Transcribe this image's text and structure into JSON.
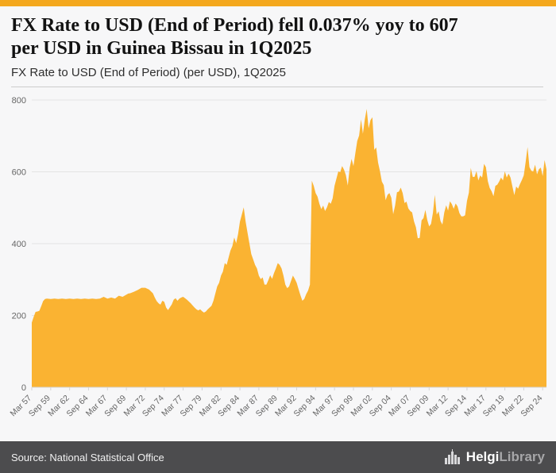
{
  "header": {
    "title_line1": "FX Rate to USD (End of Period) fell 0.037% yoy to 607",
    "title_line2": "per USD in Guinea Bissau in 1Q2025",
    "subtitle": "FX Rate to USD (End of Period) (per USD), 1Q2025"
  },
  "footer": {
    "source": "Source: National Statistical Office",
    "brand_primary": "Helgi",
    "brand_secondary": "Library"
  },
  "colors": {
    "accent_area_fill": "#FAB332",
    "accent_top_bar": "#F4A81D",
    "footer_bg": "#4C4C4E",
    "grid_line": "#e3e3e3",
    "axis_line": "#d6d6d6",
    "tick_text": "#666666"
  },
  "chart_data": {
    "type": "area",
    "title": "FX Rate to USD (End of Period) (per USD), 1Q2025",
    "xlabel": "",
    "ylabel": "",
    "ylim": [
      0,
      800
    ],
    "yticks": [
      0,
      200,
      400,
      600,
      800
    ],
    "xlim": [
      1957.0,
      2025.0
    ],
    "grid": true,
    "legend": "none",
    "latest_value": 607,
    "latest_period": "1Q2025",
    "yoy_change_pct": -0.037,
    "xticks": [
      {
        "x": 1957.0,
        "label": "Mar 57"
      },
      {
        "x": 1959.5,
        "label": "Sep 59"
      },
      {
        "x": 1962.0,
        "label": "Mar 62"
      },
      {
        "x": 1964.5,
        "label": "Sep 64"
      },
      {
        "x": 1967.0,
        "label": "Mar 67"
      },
      {
        "x": 1969.5,
        "label": "Sep 69"
      },
      {
        "x": 1972.0,
        "label": "Mar 72"
      },
      {
        "x": 1974.5,
        "label": "Sep 74"
      },
      {
        "x": 1977.0,
        "label": "Mar 77"
      },
      {
        "x": 1979.5,
        "label": "Sep 79"
      },
      {
        "x": 1982.0,
        "label": "Mar 82"
      },
      {
        "x": 1984.5,
        "label": "Sep 84"
      },
      {
        "x": 1987.0,
        "label": "Mar 87"
      },
      {
        "x": 1989.5,
        "label": "Sep 89"
      },
      {
        "x": 1992.0,
        "label": "Mar 92"
      },
      {
        "x": 1994.5,
        "label": "Sep 94"
      },
      {
        "x": 1997.0,
        "label": "Mar 97"
      },
      {
        "x": 1999.5,
        "label": "Sep 99"
      },
      {
        "x": 2002.0,
        "label": "Mar 02"
      },
      {
        "x": 2004.5,
        "label": "Sep 04"
      },
      {
        "x": 2007.0,
        "label": "Mar 07"
      },
      {
        "x": 2009.5,
        "label": "Sep 09"
      },
      {
        "x": 2012.0,
        "label": "Mar 12"
      },
      {
        "x": 2014.5,
        "label": "Sep 14"
      },
      {
        "x": 2017.0,
        "label": "Mar 17"
      },
      {
        "x": 2019.5,
        "label": "Sep 19"
      },
      {
        "x": 2022.0,
        "label": "Mar 22"
      },
      {
        "x": 2024.5,
        "label": "Sep 24"
      }
    ],
    "points": [
      [
        1957.0,
        180
      ],
      [
        1957.25,
        196
      ],
      [
        1957.5,
        210
      ],
      [
        1957.75,
        211
      ],
      [
        1958.0,
        213
      ],
      [
        1958.25,
        226
      ],
      [
        1958.5,
        240
      ],
      [
        1958.75,
        246
      ],
      [
        1959.0,
        247
      ],
      [
        1959.5,
        246
      ],
      [
        1960.0,
        247
      ],
      [
        1960.5,
        246
      ],
      [
        1961.0,
        247
      ],
      [
        1961.5,
        246
      ],
      [
        1962.0,
        247
      ],
      [
        1962.5,
        246
      ],
      [
        1963.0,
        247
      ],
      [
        1963.5,
        246
      ],
      [
        1964.0,
        247
      ],
      [
        1964.5,
        246
      ],
      [
        1965.0,
        247
      ],
      [
        1965.5,
        246
      ],
      [
        1966.0,
        247
      ],
      [
        1966.5,
        252
      ],
      [
        1967.0,
        247
      ],
      [
        1967.5,
        250
      ],
      [
        1968.0,
        247
      ],
      [
        1968.5,
        255
      ],
      [
        1969.0,
        252
      ],
      [
        1969.5,
        258
      ],
      [
        1969.75,
        261
      ],
      [
        1970.0,
        262
      ],
      [
        1970.5,
        266
      ],
      [
        1971.0,
        271
      ],
      [
        1971.5,
        277
      ],
      [
        1972.0,
        277
      ],
      [
        1972.5,
        272
      ],
      [
        1973.0,
        262
      ],
      [
        1973.25,
        250
      ],
      [
        1973.5,
        240
      ],
      [
        1973.75,
        234
      ],
      [
        1974.0,
        230
      ],
      [
        1974.25,
        241
      ],
      [
        1974.5,
        238
      ],
      [
        1974.75,
        222
      ],
      [
        1975.0,
        215
      ],
      [
        1975.25,
        223
      ],
      [
        1975.5,
        231
      ],
      [
        1975.75,
        244
      ],
      [
        1976.0,
        248
      ],
      [
        1976.25,
        241
      ],
      [
        1976.5,
        247
      ],
      [
        1976.75,
        250
      ],
      [
        1977.0,
        252
      ],
      [
        1977.25,
        248
      ],
      [
        1977.5,
        244
      ],
      [
        1977.75,
        239
      ],
      [
        1978.0,
        234
      ],
      [
        1978.25,
        228
      ],
      [
        1978.5,
        222
      ],
      [
        1978.75,
        217
      ],
      [
        1979.0,
        214
      ],
      [
        1979.25,
        217
      ],
      [
        1979.5,
        212
      ],
      [
        1979.75,
        208
      ],
      [
        1980.0,
        211
      ],
      [
        1980.25,
        217
      ],
      [
        1980.5,
        222
      ],
      [
        1980.75,
        227
      ],
      [
        1981.0,
        241
      ],
      [
        1981.25,
        261
      ],
      [
        1981.5,
        281
      ],
      [
        1981.75,
        291
      ],
      [
        1982.0,
        311
      ],
      [
        1982.25,
        322
      ],
      [
        1982.5,
        346
      ],
      [
        1982.75,
        341
      ],
      [
        1983.0,
        361
      ],
      [
        1983.25,
        381
      ],
      [
        1983.5,
        393
      ],
      [
        1983.75,
        417
      ],
      [
        1984.0,
        401
      ],
      [
        1984.25,
        426
      ],
      [
        1984.5,
        461
      ],
      [
        1984.75,
        481
      ],
      [
        1985.0,
        501
      ],
      [
        1985.25,
        462
      ],
      [
        1985.5,
        431
      ],
      [
        1985.75,
        401
      ],
      [
        1986.0,
        371
      ],
      [
        1986.25,
        356
      ],
      [
        1986.5,
        341
      ],
      [
        1986.75,
        331
      ],
      [
        1987.0,
        311
      ],
      [
        1987.25,
        301
      ],
      [
        1987.5,
        306
      ],
      [
        1987.75,
        286
      ],
      [
        1988.0,
        286
      ],
      [
        1988.25,
        298
      ],
      [
        1988.5,
        312
      ],
      [
        1988.75,
        302
      ],
      [
        1989.0,
        318
      ],
      [
        1989.25,
        331
      ],
      [
        1989.5,
        346
      ],
      [
        1989.75,
        341
      ],
      [
        1990.0,
        331
      ],
      [
        1990.25,
        311
      ],
      [
        1990.5,
        286
      ],
      [
        1990.75,
        276
      ],
      [
        1991.0,
        281
      ],
      [
        1991.25,
        296
      ],
      [
        1991.5,
        311
      ],
      [
        1991.75,
        302
      ],
      [
        1992.0,
        291
      ],
      [
        1992.25,
        273
      ],
      [
        1992.5,
        256
      ],
      [
        1992.75,
        241
      ],
      [
        1993.0,
        246
      ],
      [
        1993.25,
        259
      ],
      [
        1993.5,
        269
      ],
      [
        1993.75,
        286
      ],
      [
        1994.0,
        575
      ],
      [
        1994.25,
        561
      ],
      [
        1994.5,
        541
      ],
      [
        1994.75,
        531
      ],
      [
        1995.0,
        511
      ],
      [
        1995.25,
        496
      ],
      [
        1995.5,
        506
      ],
      [
        1995.75,
        491
      ],
      [
        1996.0,
        501
      ],
      [
        1996.25,
        516
      ],
      [
        1996.5,
        511
      ],
      [
        1996.75,
        526
      ],
      [
        1997.0,
        561
      ],
      [
        1997.25,
        581
      ],
      [
        1997.5,
        601
      ],
      [
        1997.75,
        599
      ],
      [
        1998.0,
        616
      ],
      [
        1998.25,
        606
      ],
      [
        1998.5,
        591
      ],
      [
        1998.75,
        562
      ],
      [
        1999.0,
        611
      ],
      [
        1999.25,
        636
      ],
      [
        1999.5,
        616
      ],
      [
        1999.75,
        652
      ],
      [
        2000.0,
        686
      ],
      [
        2000.25,
        701
      ],
      [
        2000.5,
        746
      ],
      [
        2000.75,
        706
      ],
      [
        2001.0,
        746
      ],
      [
        2001.25,
        775
      ],
      [
        2001.5,
        721
      ],
      [
        2001.75,
        744
      ],
      [
        2002.0,
        752
      ],
      [
        2002.25,
        661
      ],
      [
        2002.5,
        668
      ],
      [
        2002.75,
        626
      ],
      [
        2003.0,
        602
      ],
      [
        2003.25,
        573
      ],
      [
        2003.5,
        563
      ],
      [
        2003.75,
        521
      ],
      [
        2004.0,
        536
      ],
      [
        2004.25,
        541
      ],
      [
        2004.5,
        528
      ],
      [
        2004.75,
        482
      ],
      [
        2005.0,
        506
      ],
      [
        2005.25,
        543
      ],
      [
        2005.5,
        545
      ],
      [
        2005.75,
        556
      ],
      [
        2006.0,
        541
      ],
      [
        2006.25,
        513
      ],
      [
        2006.5,
        517
      ],
      [
        2006.75,
        498
      ],
      [
        2007.0,
        491
      ],
      [
        2007.25,
        487
      ],
      [
        2007.5,
        462
      ],
      [
        2007.75,
        446
      ],
      [
        2008.0,
        415
      ],
      [
        2008.25,
        416
      ],
      [
        2008.5,
        465
      ],
      [
        2008.75,
        471
      ],
      [
        2009.0,
        494
      ],
      [
        2009.25,
        466
      ],
      [
        2009.5,
        448
      ],
      [
        2009.75,
        455
      ],
      [
        2010.0,
        486
      ],
      [
        2010.25,
        536
      ],
      [
        2010.5,
        481
      ],
      [
        2010.75,
        490
      ],
      [
        2011.0,
        463
      ],
      [
        2011.25,
        453
      ],
      [
        2011.5,
        487
      ],
      [
        2011.75,
        507
      ],
      [
        2012.0,
        492
      ],
      [
        2012.25,
        518
      ],
      [
        2012.5,
        510
      ],
      [
        2012.75,
        497
      ],
      [
        2013.0,
        512
      ],
      [
        2013.25,
        504
      ],
      [
        2013.5,
        485
      ],
      [
        2013.75,
        476
      ],
      [
        2014.0,
        476
      ],
      [
        2014.25,
        479
      ],
      [
        2014.5,
        519
      ],
      [
        2014.75,
        542
      ],
      [
        2015.0,
        611
      ],
      [
        2015.25,
        586
      ],
      [
        2015.5,
        586
      ],
      [
        2015.75,
        602
      ],
      [
        2016.0,
        576
      ],
      [
        2016.25,
        590
      ],
      [
        2016.5,
        584
      ],
      [
        2016.75,
        622
      ],
      [
        2017.0,
        613
      ],
      [
        2017.25,
        574
      ],
      [
        2017.5,
        555
      ],
      [
        2017.75,
        546
      ],
      [
        2018.0,
        532
      ],
      [
        2018.25,
        561
      ],
      [
        2018.5,
        564
      ],
      [
        2018.75,
        573
      ],
      [
        2019.0,
        584
      ],
      [
        2019.25,
        576
      ],
      [
        2019.5,
        601
      ],
      [
        2019.75,
        584
      ],
      [
        2020.0,
        595
      ],
      [
        2020.25,
        584
      ],
      [
        2020.5,
        559
      ],
      [
        2020.75,
        535
      ],
      [
        2021.0,
        559
      ],
      [
        2021.25,
        553
      ],
      [
        2021.5,
        566
      ],
      [
        2021.75,
        577
      ],
      [
        2022.0,
        590
      ],
      [
        2022.25,
        627
      ],
      [
        2022.5,
        669
      ],
      [
        2022.75,
        613
      ],
      [
        2023.0,
        603
      ],
      [
        2023.25,
        601
      ],
      [
        2023.5,
        620
      ],
      [
        2023.75,
        593
      ],
      [
        2024.0,
        607
      ],
      [
        2024.25,
        612
      ],
      [
        2024.5,
        588
      ],
      [
        2024.75,
        633
      ],
      [
        2025.0,
        607
      ]
    ]
  }
}
